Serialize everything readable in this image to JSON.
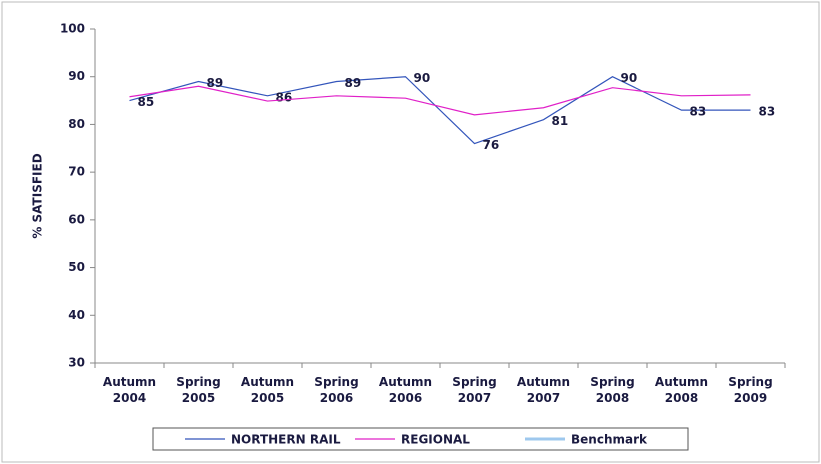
{
  "chart_data": {
    "type": "line",
    "ylabel": "% SATISFIED",
    "categories": [
      "Autumn 2004",
      "Spring 2005",
      "Autumn 2005",
      "Spring 2006",
      "Autumn 2006",
      "Spring 2007",
      "Autumn 2007",
      "Spring 2008",
      "Autumn 2008",
      "Spring 2009"
    ],
    "series": [
      {
        "name": "NORTHERN RAIL",
        "color": "#3355bb",
        "values": [
          85,
          89,
          86,
          89,
          90,
          76,
          81,
          90,
          83,
          83
        ],
        "labels": true
      },
      {
        "name": "REGIONAL",
        "color": "#e020c8",
        "values": [
          85.8,
          88,
          84.9,
          86,
          85.5,
          82,
          83.5,
          87.7,
          86,
          86.2
        ]
      },
      {
        "name": "Benchmark",
        "color": "#9ec8ee",
        "values": [
          null,
          null,
          null,
          null,
          null,
          null,
          null,
          null,
          null,
          null
        ]
      }
    ],
    "ylim": [
      30,
      100
    ],
    "yticks": [
      30,
      40,
      50,
      60,
      70,
      80,
      90,
      100
    ],
    "legend": "bottom"
  }
}
